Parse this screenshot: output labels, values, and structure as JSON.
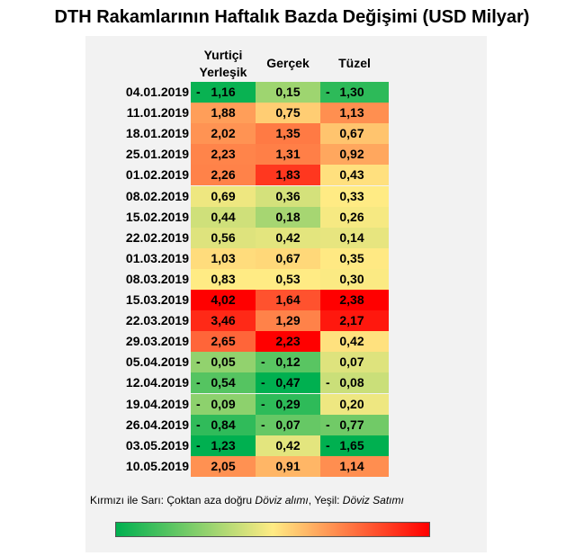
{
  "colors": {
    "low": "#00b050",
    "mid": "#ffeb84",
    "high": "#ff0000"
  },
  "legend": {
    "prefix": "Kırmızı ile Sarı: Çoktan aza doğru ",
    "buy": "Döviz alımı",
    "sep": ", Yeşil: ",
    "sell": "Döviz Satımı"
  },
  "chart_data": {
    "type": "table",
    "title": "DTH Rakamlarının Haftalık Bazda Değişimi (USD Milyar)",
    "columns": [
      {
        "line1": "Yurtiçi",
        "line2": "Yerleşik"
      },
      {
        "line1": "",
        "line2": "Gerçek"
      },
      {
        "line1": "",
        "line2": "Tüzel"
      }
    ],
    "rows": [
      {
        "date": "04.01.2019",
        "values": [
          -1.16,
          0.15,
          -1.3
        ]
      },
      {
        "date": "11.01.2019",
        "values": [
          1.88,
          0.75,
          1.13
        ]
      },
      {
        "date": "18.01.2019",
        "values": [
          2.02,
          1.35,
          0.67
        ]
      },
      {
        "date": "25.01.2019",
        "values": [
          2.23,
          1.31,
          0.92
        ]
      },
      {
        "date": "01.02.2019",
        "values": [
          2.26,
          1.83,
          0.43
        ]
      },
      {
        "date": "08.02.2019",
        "values": [
          0.69,
          0.36,
          0.33
        ]
      },
      {
        "date": "15.02.2019",
        "values": [
          0.44,
          0.18,
          0.26
        ]
      },
      {
        "date": "22.02.2019",
        "values": [
          0.56,
          0.42,
          0.14
        ]
      },
      {
        "date": "01.03.2019",
        "values": [
          1.03,
          0.67,
          0.35
        ]
      },
      {
        "date": "08.03.2019",
        "values": [
          0.83,
          0.53,
          0.3
        ]
      },
      {
        "date": "15.03.2019",
        "values": [
          4.02,
          1.64,
          2.38
        ]
      },
      {
        "date": "22.03.2019",
        "values": [
          3.46,
          1.29,
          2.17
        ]
      },
      {
        "date": "29.03.2019",
        "values": [
          2.65,
          2.23,
          0.42
        ]
      },
      {
        "date": "05.04.2019",
        "values": [
          -0.05,
          -0.12,
          0.07
        ]
      },
      {
        "date": "12.04.2019",
        "values": [
          -0.54,
          -0.47,
          -0.08
        ]
      },
      {
        "date": "19.04.2019",
        "values": [
          -0.09,
          -0.29,
          0.2
        ]
      },
      {
        "date": "26.04.2019",
        "values": [
          -0.84,
          -0.07,
          -0.77
        ]
      },
      {
        "date": "03.05.2019",
        "values": [
          -1.23,
          0.42,
          -1.65
        ]
      },
      {
        "date": "10.05.2019",
        "values": [
          2.05,
          0.91,
          1.14
        ]
      }
    ]
  }
}
